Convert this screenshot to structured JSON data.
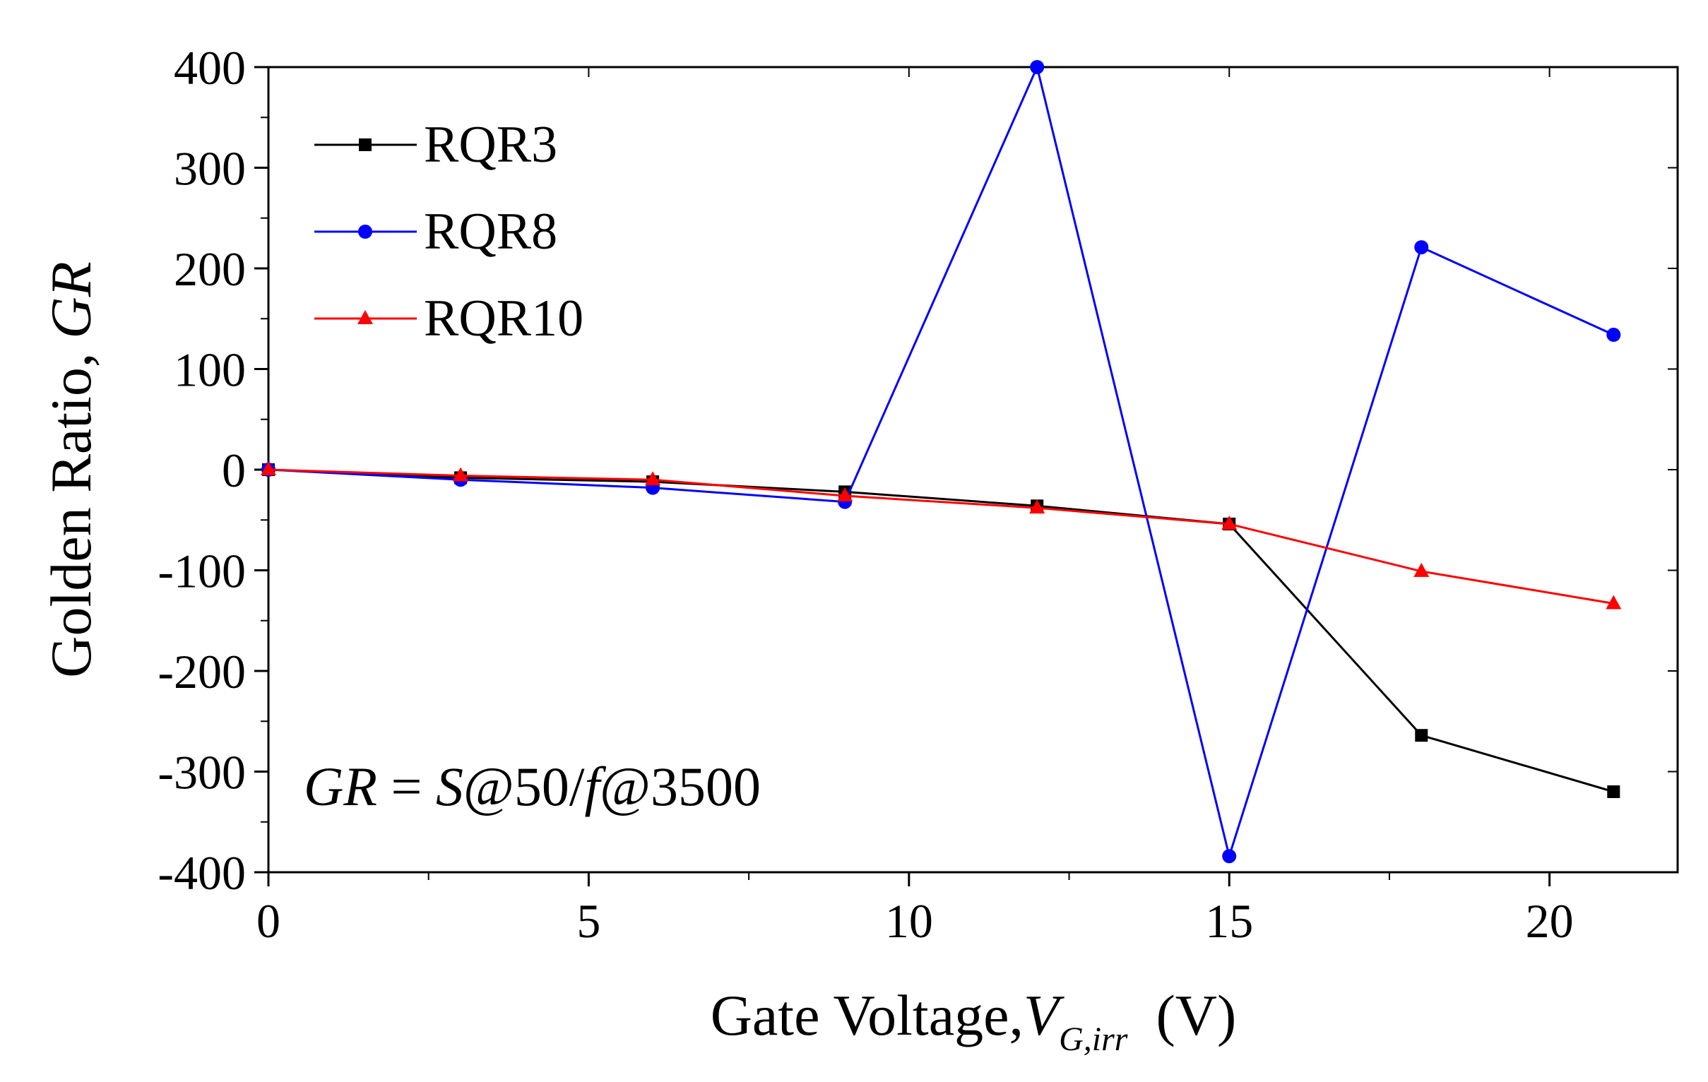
{
  "chart_data": {
    "type": "line",
    "title": "",
    "xlabel": "Gate Voltage,",
    "xlabel_var": "V",
    "xlabel_sub": "G,irr",
    "xlabel_unit": "(V)",
    "ylabel": "Golden Ratio,",
    "ylabel_var": "GR",
    "xlim": [
      0,
      22
    ],
    "ylim": [
      -400,
      400
    ],
    "xticks": [
      0,
      5,
      10,
      15,
      20
    ],
    "yticks": [
      400,
      300,
      200,
      100,
      0,
      -100,
      -200,
      -300,
      -400
    ],
    "x": [
      0,
      3,
      6,
      9,
      12,
      15,
      18,
      21
    ],
    "series": [
      {
        "name": "RQR3",
        "color": "#000000",
        "marker": "square",
        "values": [
          0,
          -8,
          -12,
          -22,
          -36,
          -54,
          -264,
          -320
        ]
      },
      {
        "name": "RQR8",
        "color": "#0000ff",
        "marker": "circle",
        "values": [
          0,
          -10,
          -18,
          -32,
          400,
          -384,
          221,
          134
        ]
      },
      {
        "name": "RQR10",
        "color": "#ff0000",
        "marker": "triangle",
        "values": [
          0,
          -6,
          -10,
          -26,
          -38,
          -54,
          -101,
          -133
        ]
      }
    ],
    "annotation": {
      "lhs": "GR",
      "eq": " = ",
      "s": "S",
      "mid": "@50/",
      "f": "f",
      "rhs": "@3500"
    },
    "legend_position": "top-left"
  }
}
